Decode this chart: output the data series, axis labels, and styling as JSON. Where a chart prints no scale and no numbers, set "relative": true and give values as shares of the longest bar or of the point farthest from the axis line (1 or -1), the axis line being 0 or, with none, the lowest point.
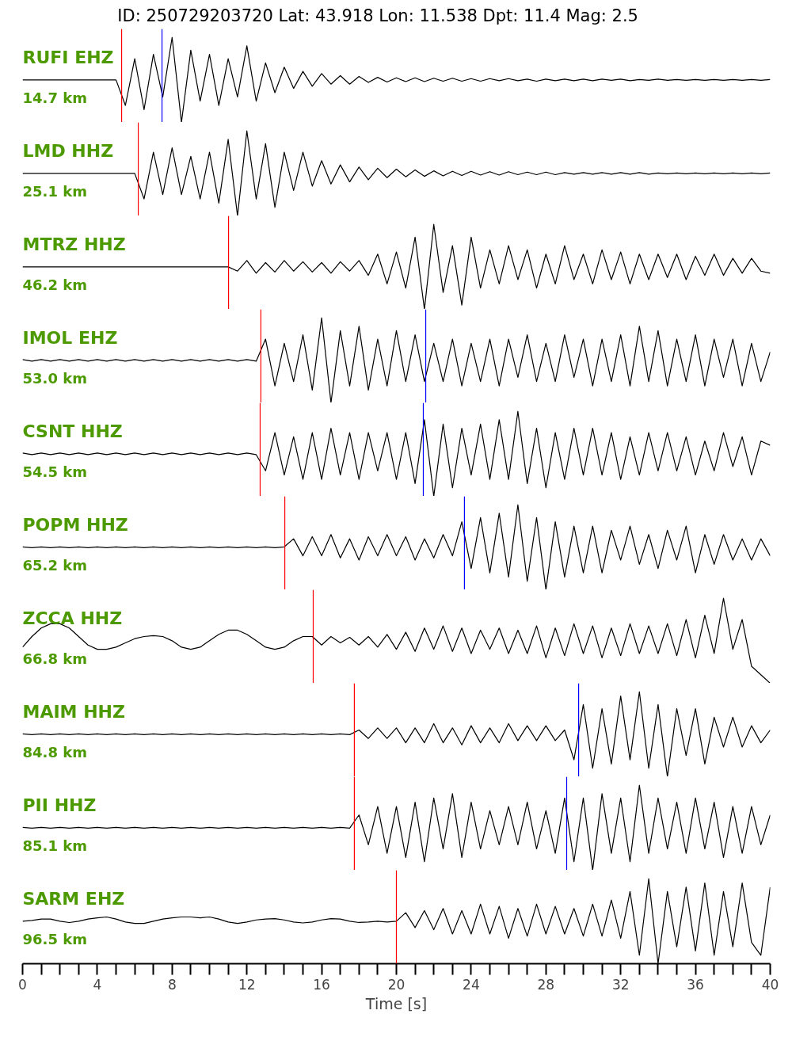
{
  "chart_data": [
    {
      "type": "line",
      "relative": true,
      "title": "ID: 250729203720 Lat:  43.918 Lon:  11.538 Dpt:    11.4 Mag:   2.5",
      "annotations": [
        "RUFI EHZ",
        "14.7 km"
      ],
      "xlim": [
        0,
        40
      ],
      "tick_labels": false,
      "x": [
        0,
        0.5,
        1,
        1.5,
        2,
        2.5,
        3,
        3.5,
        4,
        4.5,
        5,
        5.5,
        6,
        6.5,
        7,
        7.5,
        8,
        8.5,
        9,
        9.5,
        10,
        10.5,
        11,
        11.5,
        12,
        12.5,
        13,
        13.5,
        14,
        14.5,
        15,
        15.5,
        16,
        16.5,
        17,
        17.5,
        18,
        18.5,
        19,
        19.5,
        20,
        20.5,
        21,
        21.5,
        22,
        22.5,
        23,
        23.5,
        24,
        24.5,
        25,
        25.5,
        26,
        26.5,
        27,
        27.5,
        28,
        28.5,
        29,
        29.5,
        30,
        30.5,
        31,
        31.5,
        32,
        32.5,
        33,
        33.5,
        34,
        34.5,
        35,
        35.5,
        36,
        36.5,
        37,
        37.5,
        38,
        38.5,
        39,
        39.5,
        40
      ],
      "series": [
        {
          "color": "#000000",
          "values": [
            0.5,
            0.5,
            0.5,
            0.5,
            0.5,
            0.5,
            0.5,
            0.5,
            0.5,
            0.5,
            0.5,
            0.2,
            0.75,
            0.15,
            0.8,
            0.3,
            1,
            0,
            0.85,
            0.25,
            0.8,
            0.2,
            0.75,
            0.3,
            0.9,
            0.25,
            0.7,
            0.35,
            0.65,
            0.4,
            0.6,
            0.425,
            0.575,
            0.45,
            0.55,
            0.45,
            0.54,
            0.47,
            0.53,
            0.475,
            0.525,
            0.48,
            0.525,
            0.48,
            0.52,
            0.485,
            0.52,
            0.485,
            0.515,
            0.485,
            0.515,
            0.49,
            0.515,
            0.49,
            0.51,
            0.485,
            0.51,
            0.49,
            0.51,
            0.49,
            0.51,
            0.49,
            0.51,
            0.495,
            0.51,
            0.49,
            0.505,
            0.495,
            0.51,
            0.495,
            0.505,
            0.495,
            0.505,
            0.495,
            0.505,
            0.495,
            0.505,
            0.495,
            0.505,
            0.495,
            0.505
          ]
        }
      ],
      "ref_lines": [
        {
          "axis": "x",
          "value": 5.3,
          "color": "#ff0000"
        },
        {
          "axis": "x",
          "value": 7.46,
          "color": "#0000ff"
        }
      ]
    },
    {
      "type": "line",
      "relative": true,
      "annotations": [
        "LMD HHZ",
        "25.1 km"
      ],
      "xlim": [
        0,
        40
      ],
      "tick_labels": false,
      "x": [
        0,
        0.5,
        1,
        1.5,
        2,
        2.5,
        3,
        3.5,
        4,
        4.5,
        5,
        5.5,
        6,
        6.5,
        7,
        7.5,
        8,
        8.5,
        9,
        9.5,
        10,
        10.5,
        11,
        11.5,
        12,
        12.5,
        13,
        13.5,
        14,
        14.5,
        15,
        15.5,
        16,
        16.5,
        17,
        17.5,
        18,
        18.5,
        19,
        19.5,
        20,
        20.5,
        21,
        21.5,
        22,
        22.5,
        23,
        23.5,
        24,
        24.5,
        25,
        25.5,
        26,
        26.5,
        27,
        27.5,
        28,
        28.5,
        29,
        29.5,
        30,
        30.5,
        31,
        31.5,
        32,
        32.5,
        33,
        33.5,
        34,
        34.5,
        35,
        35.5,
        36,
        36.5,
        37,
        37.5,
        38,
        38.5,
        39,
        39.5,
        40
      ],
      "series": [
        {
          "color": "#000000",
          "values": [
            0.5,
            0.5,
            0.5,
            0.5,
            0.5,
            0.5,
            0.5,
            0.5,
            0.5,
            0.5,
            0.5,
            0.5,
            0.5,
            0.2,
            0.75,
            0.25,
            0.8,
            0.25,
            0.7,
            0.2,
            0.75,
            0.15,
            0.9,
            0,
            1,
            0.2,
            0.85,
            0.1,
            0.75,
            0.3,
            0.75,
            0.35,
            0.65,
            0.375,
            0.6,
            0.4,
            0.575,
            0.425,
            0.56,
            0.45,
            0.55,
            0.46,
            0.54,
            0.465,
            0.53,
            0.47,
            0.525,
            0.475,
            0.525,
            0.48,
            0.52,
            0.48,
            0.52,
            0.485,
            0.515,
            0.485,
            0.515,
            0.485,
            0.51,
            0.49,
            0.51,
            0.49,
            0.51,
            0.49,
            0.51,
            0.49,
            0.51,
            0.49,
            0.505,
            0.495,
            0.505,
            0.495,
            0.505,
            0.495,
            0.505,
            0.495,
            0.505,
            0.495,
            0.505,
            0.495,
            0.505
          ]
        }
      ],
      "ref_lines": [
        {
          "axis": "x",
          "value": 6.19,
          "color": "#ff0000"
        }
      ]
    },
    {
      "type": "line",
      "relative": true,
      "annotations": [
        "MTRZ HHZ",
        "46.2 km"
      ],
      "xlim": [
        0,
        40
      ],
      "tick_labels": false,
      "x": [
        0,
        0.5,
        1,
        1.5,
        2,
        2.5,
        3,
        3.5,
        4,
        4.5,
        5,
        5.5,
        6,
        6.5,
        7,
        7.5,
        8,
        8.5,
        9,
        9.5,
        10,
        10.5,
        11,
        11.5,
        12,
        12.5,
        13,
        13.5,
        14,
        14.5,
        15,
        15.5,
        16,
        16.5,
        17,
        17.5,
        18,
        18.5,
        19,
        19.5,
        20,
        20.5,
        21,
        21.5,
        22,
        22.5,
        23,
        23.5,
        24,
        24.5,
        25,
        25.5,
        26,
        26.5,
        27,
        27.5,
        28,
        28.5,
        29,
        29.5,
        30,
        30.5,
        31,
        31.5,
        32,
        32.5,
        33,
        33.5,
        34,
        34.5,
        35,
        35.5,
        36,
        36.5,
        37,
        37.5,
        38,
        38.5,
        39,
        39.5,
        40
      ],
      "series": [
        {
          "color": "#000000",
          "values": [
            0.5,
            0.5,
            0.5,
            0.5,
            0.5,
            0.5,
            0.5,
            0.5,
            0.5,
            0.5,
            0.5,
            0.5,
            0.5,
            0.5,
            0.5,
            0.5,
            0.5,
            0.5,
            0.5,
            0.5,
            0.5,
            0.5,
            0.5,
            0.45,
            0.575,
            0.425,
            0.55,
            0.44,
            0.575,
            0.45,
            0.56,
            0.44,
            0.55,
            0.425,
            0.56,
            0.45,
            0.575,
            0.4,
            0.65,
            0.3,
            0.675,
            0.25,
            0.85,
            0,
            1,
            0.2,
            0.75,
            0.05,
            0.85,
            0.25,
            0.7,
            0.3,
            0.75,
            0.35,
            0.7,
            0.25,
            0.65,
            0.3,
            0.75,
            0.35,
            0.65,
            0.3,
            0.7,
            0.35,
            0.675,
            0.3,
            0.65,
            0.35,
            0.65,
            0.375,
            0.65,
            0.35,
            0.625,
            0.4,
            0.65,
            0.4,
            0.6,
            0.425,
            0.6,
            0.45,
            0.425
          ]
        }
      ],
      "ref_lines": [
        {
          "axis": "x",
          "value": 11.02,
          "color": "#ff0000"
        }
      ]
    },
    {
      "type": "line",
      "relative": true,
      "annotations": [
        "IMOL EHZ",
        "53.0 km"
      ],
      "xlim": [
        0,
        40
      ],
      "tick_labels": false,
      "x": [
        0,
        0.5,
        1,
        1.5,
        2,
        2.5,
        3,
        3.5,
        4,
        4.5,
        5,
        5.5,
        6,
        6.5,
        7,
        7.5,
        8,
        8.5,
        9,
        9.5,
        10,
        10.5,
        11,
        11.5,
        12,
        12.5,
        13,
        13.5,
        14,
        14.5,
        15,
        15.5,
        16,
        16.5,
        17,
        17.5,
        18,
        18.5,
        19,
        19.5,
        20,
        20.5,
        21,
        21.5,
        22,
        22.5,
        23,
        23.5,
        24,
        24.5,
        25,
        25.5,
        26,
        26.5,
        27,
        27.5,
        28,
        28.5,
        29,
        29.5,
        30,
        30.5,
        31,
        31.5,
        32,
        32.5,
        33,
        33.5,
        34,
        34.5,
        35,
        35.5,
        36,
        36.5,
        37,
        37.5,
        38,
        38.5,
        39,
        39.5,
        40
      ],
      "series": [
        {
          "color": "#000000",
          "values": [
            0.51,
            0.49,
            0.51,
            0.49,
            0.51,
            0.49,
            0.51,
            0.49,
            0.51,
            0.49,
            0.51,
            0.49,
            0.51,
            0.49,
            0.51,
            0.49,
            0.51,
            0.49,
            0.51,
            0.49,
            0.51,
            0.49,
            0.51,
            0.49,
            0.51,
            0.49,
            0.75,
            0.2,
            0.7,
            0.25,
            0.8,
            0.15,
            1,
            0,
            0.85,
            0.2,
            0.9,
            0.15,
            0.75,
            0.2,
            0.85,
            0.25,
            0.8,
            0.25,
            0.7,
            0.25,
            0.75,
            0.2,
            0.7,
            0.25,
            0.75,
            0.2,
            0.75,
            0.3,
            0.8,
            0.25,
            0.7,
            0.25,
            0.8,
            0.3,
            0.75,
            0.2,
            0.75,
            0.25,
            0.8,
            0.2,
            0.9,
            0.25,
            0.85,
            0.2,
            0.75,
            0.25,
            0.8,
            0.2,
            0.75,
            0.3,
            0.75,
            0.2,
            0.7,
            0.25,
            0.6
          ]
        }
      ],
      "ref_lines": [
        {
          "axis": "x",
          "value": 12.75,
          "color": "#ff0000"
        },
        {
          "axis": "x",
          "value": 21.57,
          "color": "#0000ff"
        }
      ]
    },
    {
      "type": "line",
      "relative": true,
      "annotations": [
        "CSNT HHZ",
        "54.5 km"
      ],
      "xlim": [
        0,
        40
      ],
      "tick_labels": false,
      "x": [
        0,
        0.5,
        1,
        1.5,
        2,
        2.5,
        3,
        3.5,
        4,
        4.5,
        5,
        5.5,
        6,
        6.5,
        7,
        7.5,
        8,
        8.5,
        9,
        9.5,
        10,
        10.5,
        11,
        11.5,
        12,
        12.5,
        13,
        13.5,
        14,
        14.5,
        15,
        15.5,
        16,
        16.5,
        17,
        17.5,
        18,
        18.5,
        19,
        19.5,
        20,
        20.5,
        21,
        21.5,
        22,
        22.5,
        23,
        23.5,
        24,
        24.5,
        25,
        25.5,
        26,
        26.5,
        27,
        27.5,
        28,
        28.5,
        29,
        29.5,
        30,
        30.5,
        31,
        31.5,
        32,
        32.5,
        33,
        33.5,
        34,
        34.5,
        35,
        35.5,
        36,
        36.5,
        37,
        37.5,
        38,
        38.5,
        39,
        39.5,
        40
      ],
      "series": [
        {
          "color": "#000000",
          "values": [
            0.51,
            0.49,
            0.51,
            0.49,
            0.51,
            0.49,
            0.51,
            0.49,
            0.51,
            0.49,
            0.51,
            0.49,
            0.51,
            0.49,
            0.51,
            0.49,
            0.51,
            0.49,
            0.51,
            0.49,
            0.51,
            0.49,
            0.51,
            0.49,
            0.51,
            0.49,
            0.3,
            0.75,
            0.25,
            0.7,
            0.2,
            0.75,
            0.2,
            0.8,
            0.25,
            0.75,
            0.2,
            0.75,
            0.3,
            0.75,
            0.2,
            0.75,
            0.15,
            0.9,
            0,
            0.85,
            0.1,
            0.8,
            0.25,
            0.85,
            0.2,
            0.9,
            0.2,
            1,
            0.15,
            0.8,
            0.1,
            0.75,
            0.2,
            0.8,
            0.25,
            0.8,
            0.25,
            0.75,
            0.2,
            0.7,
            0.25,
            0.75,
            0.3,
            0.75,
            0.3,
            0.7,
            0.25,
            0.65,
            0.3,
            0.75,
            0.35,
            0.7,
            0.25,
            0.65,
            0.6
          ]
        }
      ],
      "ref_lines": [
        {
          "axis": "x",
          "value": 12.71,
          "color": "#ff0000"
        },
        {
          "axis": "x",
          "value": 21.44,
          "color": "#0000ff"
        }
      ]
    },
    {
      "type": "line",
      "relative": true,
      "annotations": [
        "POPM HHZ",
        "65.2 km"
      ],
      "xlim": [
        0,
        40
      ],
      "tick_labels": false,
      "x": [
        0,
        0.5,
        1,
        1.5,
        2,
        2.5,
        3,
        3.5,
        4,
        4.5,
        5,
        5.5,
        6,
        6.5,
        7,
        7.5,
        8,
        8.5,
        9,
        9.5,
        10,
        10.5,
        11,
        11.5,
        12,
        12.5,
        13,
        13.5,
        14,
        14.5,
        15,
        15.5,
        16,
        16.5,
        17,
        17.5,
        18,
        18.5,
        19,
        19.5,
        20,
        20.5,
        21,
        21.5,
        22,
        22.5,
        23,
        23.5,
        24,
        24.5,
        25,
        25.5,
        26,
        26.5,
        27,
        27.5,
        28,
        28.5,
        29,
        29.5,
        30,
        30.5,
        31,
        31.5,
        32,
        32.5,
        33,
        33.5,
        34,
        34.5,
        35,
        35.5,
        36,
        36.5,
        37,
        37.5,
        38,
        38.5,
        39,
        39.5,
        40
      ],
      "series": [
        {
          "color": "#000000",
          "values": [
            0.505,
            0.495,
            0.505,
            0.495,
            0.505,
            0.495,
            0.505,
            0.495,
            0.505,
            0.495,
            0.505,
            0.495,
            0.505,
            0.495,
            0.505,
            0.495,
            0.505,
            0.495,
            0.505,
            0.495,
            0.505,
            0.495,
            0.505,
            0.495,
            0.505,
            0.495,
            0.505,
            0.495,
            0.505,
            0.6,
            0.4,
            0.625,
            0.4,
            0.65,
            0.375,
            0.6,
            0.35,
            0.625,
            0.4,
            0.65,
            0.4,
            0.625,
            0.35,
            0.6,
            0.375,
            0.65,
            0.4,
            0.8,
            0.25,
            0.85,
            0.2,
            0.9,
            0.15,
            1,
            0.1,
            0.85,
            0,
            0.8,
            0.15,
            0.75,
            0.2,
            0.75,
            0.2,
            0.7,
            0.35,
            0.75,
            0.3,
            0.65,
            0.25,
            0.7,
            0.35,
            0.75,
            0.2,
            0.65,
            0.3,
            0.65,
            0.35,
            0.6,
            0.35,
            0.6,
            0.4
          ]
        }
      ],
      "ref_lines": [
        {
          "axis": "x",
          "value": 14.03,
          "color": "#ff0000"
        },
        {
          "axis": "x",
          "value": 23.64,
          "color": "#0000ff"
        }
      ]
    },
    {
      "type": "line",
      "relative": true,
      "annotations": [
        "ZCCA HHZ",
        "66.8 km"
      ],
      "xlim": [
        0,
        40
      ],
      "tick_labels": false,
      "x": [
        0,
        0.5,
        1,
        1.5,
        2,
        2.5,
        3,
        3.5,
        4,
        4.5,
        5,
        5.5,
        6,
        6.5,
        7,
        7.5,
        8,
        8.5,
        9,
        9.5,
        10,
        10.5,
        11,
        11.5,
        12,
        12.5,
        13,
        13.5,
        14,
        14.5,
        15,
        15.5,
        16,
        16.5,
        17,
        17.5,
        18,
        18.5,
        19,
        19.5,
        20,
        20.5,
        21,
        21.5,
        22,
        22.5,
        23,
        23.5,
        24,
        24.5,
        25,
        25.5,
        26,
        26.5,
        27,
        27.5,
        28,
        28.5,
        29,
        29.5,
        30,
        30.5,
        31,
        31.5,
        32,
        32.5,
        33,
        33.5,
        34,
        34.5,
        35,
        35.5,
        36,
        36.5,
        37,
        37.5,
        38,
        38.5,
        39,
        39.5,
        40
      ],
      "series": [
        {
          "color": "#000000",
          "values": [
            0.425,
            0.55,
            0.65,
            0.7,
            0.7,
            0.65,
            0.55,
            0.45,
            0.4,
            0.4,
            0.425,
            0.475,
            0.525,
            0.55,
            0.56,
            0.55,
            0.5,
            0.425,
            0.4,
            0.425,
            0.5,
            0.575,
            0.625,
            0.625,
            0.575,
            0.5,
            0.425,
            0.4,
            0.425,
            0.5,
            0.55,
            0.55,
            0.45,
            0.55,
            0.475,
            0.54,
            0.45,
            0.55,
            0.425,
            0.575,
            0.4,
            0.6,
            0.375,
            0.65,
            0.4,
            0.675,
            0.375,
            0.65,
            0.35,
            0.625,
            0.4,
            0.65,
            0.35,
            0.625,
            0.35,
            0.675,
            0.3,
            0.65,
            0.325,
            0.7,
            0.35,
            0.675,
            0.3,
            0.65,
            0.325,
            0.7,
            0.35,
            0.675,
            0.35,
            0.7,
            0.325,
            0.75,
            0.3,
            0.8,
            0.35,
            1,
            0.4,
            0.75,
            0.2,
            0.1,
            0
          ]
        }
      ],
      "ref_lines": [
        {
          "axis": "x",
          "value": 15.55,
          "color": "#ff0000"
        }
      ]
    },
    {
      "type": "line",
      "relative": true,
      "annotations": [
        "MAIM HHZ",
        "84.8 km"
      ],
      "xlim": [
        0,
        40
      ],
      "tick_labels": false,
      "x": [
        0,
        0.5,
        1,
        1.5,
        2,
        2.5,
        3,
        3.5,
        4,
        4.5,
        5,
        5.5,
        6,
        6.5,
        7,
        7.5,
        8,
        8.5,
        9,
        9.5,
        10,
        10.5,
        11,
        11.5,
        12,
        12.5,
        13,
        13.5,
        14,
        14.5,
        15,
        15.5,
        16,
        16.5,
        17,
        17.5,
        18,
        18.5,
        19,
        19.5,
        20,
        20.5,
        21,
        21.5,
        22,
        22.5,
        23,
        23.5,
        24,
        24.5,
        25,
        25.5,
        26,
        26.5,
        27,
        27.5,
        28,
        28.5,
        29,
        29.5,
        30,
        30.5,
        31,
        31.5,
        32,
        32.5,
        33,
        33.5,
        34,
        34.5,
        35,
        35.5,
        36,
        36.5,
        37,
        37.5,
        38,
        38.5,
        39,
        39.5,
        40
      ],
      "series": [
        {
          "color": "#000000",
          "values": [
            0.505,
            0.495,
            0.505,
            0.495,
            0.505,
            0.495,
            0.505,
            0.495,
            0.505,
            0.495,
            0.505,
            0.495,
            0.505,
            0.495,
            0.505,
            0.495,
            0.505,
            0.495,
            0.505,
            0.495,
            0.505,
            0.495,
            0.505,
            0.495,
            0.505,
            0.495,
            0.505,
            0.495,
            0.505,
            0.495,
            0.505,
            0.495,
            0.505,
            0.495,
            0.505,
            0.495,
            0.55,
            0.45,
            0.575,
            0.45,
            0.575,
            0.4,
            0.575,
            0.4,
            0.625,
            0.4,
            0.575,
            0.375,
            0.6,
            0.4,
            0.575,
            0.4,
            0.625,
            0.425,
            0.6,
            0.425,
            0.6,
            0.425,
            0.55,
            0.2,
            0.85,
            0.1,
            0.8,
            0.15,
            0.95,
            0.2,
            1,
            0.1,
            0.85,
            0,
            0.8,
            0.25,
            0.8,
            0.15,
            0.7,
            0.35,
            0.7,
            0.35,
            0.6,
            0.4,
            0.55
          ]
        }
      ],
      "ref_lines": [
        {
          "axis": "x",
          "value": 17.75,
          "color": "#ff0000"
        },
        {
          "axis": "x",
          "value": 29.75,
          "color": "#0000ff"
        }
      ]
    },
    {
      "type": "line",
      "relative": true,
      "annotations": [
        "PII HHZ",
        "85.1 km"
      ],
      "xlim": [
        0,
        40
      ],
      "tick_labels": false,
      "x": [
        0,
        0.5,
        1,
        1.5,
        2,
        2.5,
        3,
        3.5,
        4,
        4.5,
        5,
        5.5,
        6,
        6.5,
        7,
        7.5,
        8,
        8.5,
        9,
        9.5,
        10,
        10.5,
        11,
        11.5,
        12,
        12.5,
        13,
        13.5,
        14,
        14.5,
        15,
        15.5,
        16,
        16.5,
        17,
        17.5,
        18,
        18.5,
        19,
        19.5,
        20,
        20.5,
        21,
        21.5,
        22,
        22.5,
        23,
        23.5,
        24,
        24.5,
        25,
        25.5,
        26,
        26.5,
        27,
        27.5,
        28,
        28.5,
        29,
        29.5,
        30,
        30.5,
        31,
        31.5,
        32,
        32.5,
        33,
        33.5,
        34,
        34.5,
        35,
        35.5,
        36,
        36.5,
        37,
        37.5,
        38,
        38.5,
        39,
        39.5,
        40
      ],
      "series": [
        {
          "color": "#000000",
          "values": [
            0.505,
            0.495,
            0.505,
            0.495,
            0.505,
            0.495,
            0.505,
            0.495,
            0.505,
            0.495,
            0.505,
            0.495,
            0.505,
            0.495,
            0.505,
            0.495,
            0.505,
            0.495,
            0.505,
            0.495,
            0.505,
            0.495,
            0.505,
            0.495,
            0.505,
            0.495,
            0.505,
            0.495,
            0.505,
            0.495,
            0.505,
            0.495,
            0.505,
            0.495,
            0.505,
            0.495,
            0.65,
            0.3,
            0.75,
            0.2,
            0.75,
            0.15,
            0.8,
            0.1,
            0.85,
            0.25,
            0.9,
            0.15,
            0.8,
            0.25,
            0.7,
            0.3,
            0.75,
            0.3,
            0.8,
            0.25,
            0.7,
            0.2,
            0.85,
            0.1,
            0.85,
            0,
            0.9,
            0.2,
            0.85,
            0.1,
            1,
            0.2,
            0.85,
            0.25,
            0.8,
            0.2,
            0.85,
            0.25,
            0.8,
            0.15,
            0.75,
            0.2,
            0.75,
            0.3,
            0.65
          ]
        }
      ],
      "ref_lines": [
        {
          "axis": "x",
          "value": 17.75,
          "color": "#ff0000"
        },
        {
          "axis": "x",
          "value": 29.11,
          "color": "#0000ff"
        }
      ]
    },
    {
      "type": "line",
      "relative": true,
      "annotations": [
        "SARM EHZ",
        "96.5 km"
      ],
      "xlim": [
        0,
        40
      ],
      "tick_labels": "x",
      "xlabel": "Time [s]",
      "xticks": [
        0,
        {
          "value": 1,
          "label": null
        },
        {
          "value": 2,
          "label": null
        },
        {
          "value": 3,
          "label": null
        },
        4,
        {
          "value": 5,
          "label": null
        },
        {
          "value": 6,
          "label": null
        },
        {
          "value": 7,
          "label": null
        },
        8,
        {
          "value": 9,
          "label": null
        },
        {
          "value": 10,
          "label": null
        },
        {
          "value": 11,
          "label": null
        },
        12,
        {
          "value": 13,
          "label": null
        },
        {
          "value": 14,
          "label": null
        },
        {
          "value": 15,
          "label": null
        },
        16,
        {
          "value": 17,
          "label": null
        },
        {
          "value": 18,
          "label": null
        },
        {
          "value": 19,
          "label": null
        },
        20,
        {
          "value": 21,
          "label": null
        },
        {
          "value": 22,
          "label": null
        },
        {
          "value": 23,
          "label": null
        },
        24,
        {
          "value": 25,
          "label": null
        },
        {
          "value": 26,
          "label": null
        },
        {
          "value": 27,
          "label": null
        },
        28,
        {
          "value": 29,
          "label": null
        },
        {
          "value": 30,
          "label": null
        },
        {
          "value": 31,
          "label": null
        },
        32,
        {
          "value": 33,
          "label": null
        },
        {
          "value": 34,
          "label": null
        },
        {
          "value": 35,
          "label": null
        },
        36,
        {
          "value": 37,
          "label": null
        },
        {
          "value": 38,
          "label": null
        },
        {
          "value": 39,
          "label": null
        },
        40
      ],
      "x": [
        0,
        0.5,
        1,
        1.5,
        2,
        2.5,
        3,
        3.5,
        4,
        4.5,
        5,
        5.5,
        6,
        6.5,
        7,
        7.5,
        8,
        8.5,
        9,
        9.5,
        10,
        10.5,
        11,
        11.5,
        12,
        12.5,
        13,
        13.5,
        14,
        14.5,
        15,
        15.5,
        16,
        16.5,
        17,
        17.5,
        18,
        18.5,
        19,
        19.5,
        20,
        20.5,
        21,
        21.5,
        22,
        22.5,
        23,
        23.5,
        24,
        24.5,
        25,
        25.5,
        26,
        26.5,
        27,
        27.5,
        28,
        28.5,
        29,
        29.5,
        30,
        30.5,
        31,
        31.5,
        32,
        32.5,
        33,
        33.5,
        34,
        34.5,
        35,
        35.5,
        36,
        36.5,
        37,
        37.5,
        38,
        38.5,
        39,
        39.5,
        40
      ],
      "series": [
        {
          "color": "#000000",
          "values": [
            0.5,
            0.51,
            0.525,
            0.525,
            0.5,
            0.485,
            0.5,
            0.525,
            0.54,
            0.55,
            0.525,
            0.49,
            0.475,
            0.475,
            0.5,
            0.525,
            0.54,
            0.55,
            0.55,
            0.54,
            0.55,
            0.525,
            0.49,
            0.475,
            0.49,
            0.515,
            0.525,
            0.53,
            0.515,
            0.49,
            0.48,
            0.49,
            0.515,
            0.53,
            0.525,
            0.5,
            0.485,
            0.49,
            0.5,
            0.49,
            0.5,
            0.6,
            0.425,
            0.625,
            0.4,
            0.65,
            0.35,
            0.625,
            0.35,
            0.7,
            0.35,
            0.675,
            0.3,
            0.65,
            0.325,
            0.7,
            0.35,
            0.675,
            0.35,
            0.65,
            0.325,
            0.7,
            0.325,
            0.75,
            0.3,
            0.85,
            0.1,
            1,
            0,
            0.85,
            0.2,
            0.9,
            0.15,
            0.95,
            0.1,
            0.85,
            0.2,
            0.95,
            0.25,
            0.1,
            0.9
          ]
        }
      ],
      "ref_lines": [
        {
          "axis": "x",
          "value": 20.0,
          "color": "#ff0000"
        }
      ]
    }
  ]
}
